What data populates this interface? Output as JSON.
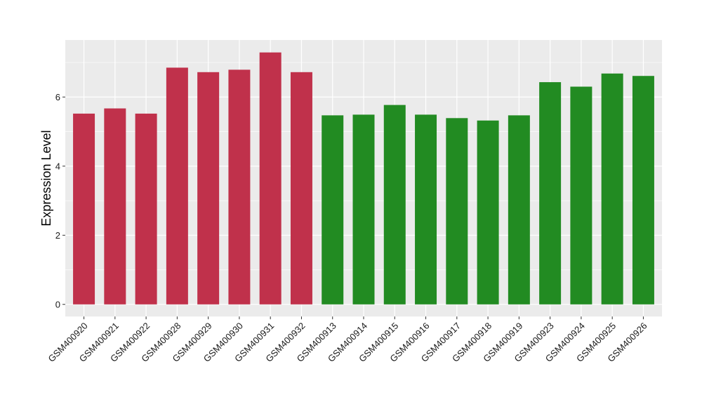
{
  "chart_data": {
    "type": "bar",
    "title": "",
    "xlabel": "",
    "ylabel": "Expression Level",
    "ylim": [
      -0.35,
      7.65
    ],
    "yticks": [
      0,
      2,
      4,
      6
    ],
    "grid": true,
    "categories": [
      "GSM400920",
      "GSM400921",
      "GSM400922",
      "GSM400928",
      "GSM400929",
      "GSM400930",
      "GSM400931",
      "GSM400932",
      "GSM400913",
      "GSM400914",
      "GSM400915",
      "GSM400916",
      "GSM400917",
      "GSM400918",
      "GSM400919",
      "GSM400923",
      "GSM400924",
      "GSM400925",
      "GSM400926"
    ],
    "values": [
      5.52,
      5.67,
      5.52,
      6.85,
      6.72,
      6.79,
      7.29,
      6.72,
      5.47,
      5.49,
      5.77,
      5.49,
      5.39,
      5.32,
      5.47,
      6.43,
      6.3,
      6.68,
      6.61
    ],
    "bar_colors": [
      "#c0314b",
      "#c0314b",
      "#c0314b",
      "#c0314b",
      "#c0314b",
      "#c0314b",
      "#c0314b",
      "#c0314b",
      "#228b22",
      "#228b22",
      "#228b22",
      "#228b22",
      "#228b22",
      "#228b22",
      "#228b22",
      "#228b22",
      "#228b22",
      "#228b22",
      "#228b22"
    ],
    "panel_background": "#ebebeb",
    "grid_color": "#ffffff"
  }
}
